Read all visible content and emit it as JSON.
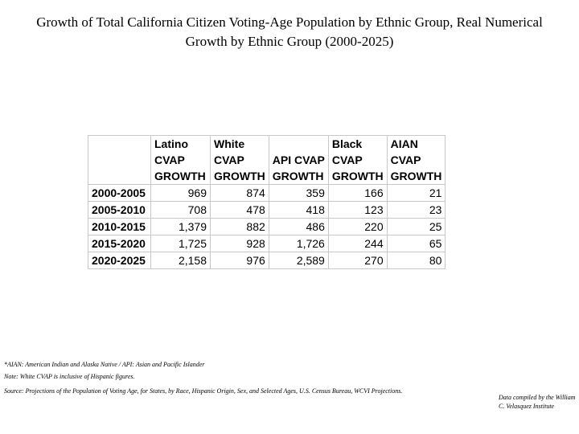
{
  "title": "Growth of Total California Citizen Voting-Age Population by Ethnic Group, Real Numerical Growth by Ethnic Group (2000-2025)",
  "chart_data": {
    "type": "table",
    "title": "Growth of Total California Citizen Voting-Age Population by Ethnic Group, Real Numerical Growth by Ethnic Group (2000-2025)",
    "columns": [
      {
        "name": "Latino CVAP GROWTH",
        "lines": [
          "Latino",
          "CVAP",
          "GROWTH"
        ]
      },
      {
        "name": "White CVAP GROWTH",
        "lines": [
          "White",
          "CVAP",
          "GROWTH"
        ]
      },
      {
        "name": "API CVAP GROWTH",
        "lines": [
          "",
          "API CVAP",
          "GROWTH"
        ]
      },
      {
        "name": "Black CVAP GROWTH",
        "lines": [
          "Black",
          "CVAP",
          "GROWTH"
        ]
      },
      {
        "name": "AIAN CVAP GROWTH",
        "lines": [
          "AIAN",
          "CVAP",
          "GROWTH"
        ]
      }
    ],
    "rows": [
      {
        "period": "2000-2005",
        "values": [
          "969",
          "874",
          "359",
          "166",
          "21"
        ]
      },
      {
        "period": "2005-2010",
        "values": [
          "708",
          "478",
          "418",
          "123",
          "23"
        ]
      },
      {
        "period": "2010-2015",
        "values": [
          "1,379",
          "882",
          "486",
          "220",
          "25"
        ]
      },
      {
        "period": "2015-2020",
        "values": [
          "1,725",
          "928",
          "1,726",
          "244",
          "65"
        ]
      },
      {
        "period": "2020-2025",
        "values": [
          "2,158",
          "976",
          "2,589",
          "270",
          "80"
        ]
      }
    ]
  },
  "footnotes": {
    "abbreviations": "*AIAN: American Indian and Alaska Native / API: Asian and Pacific Islander",
    "note": "Note: White CVAP is inclusive of Hispanic figures.",
    "source": "Source: Projections of the Population of Voting Age, for States, by Race, Hispanic Origin, Sex, and Selected Ages, U.S. Census Bureau, WCVI Projections.",
    "credit": "Data compiled by the William C. Velasquez Institute"
  }
}
